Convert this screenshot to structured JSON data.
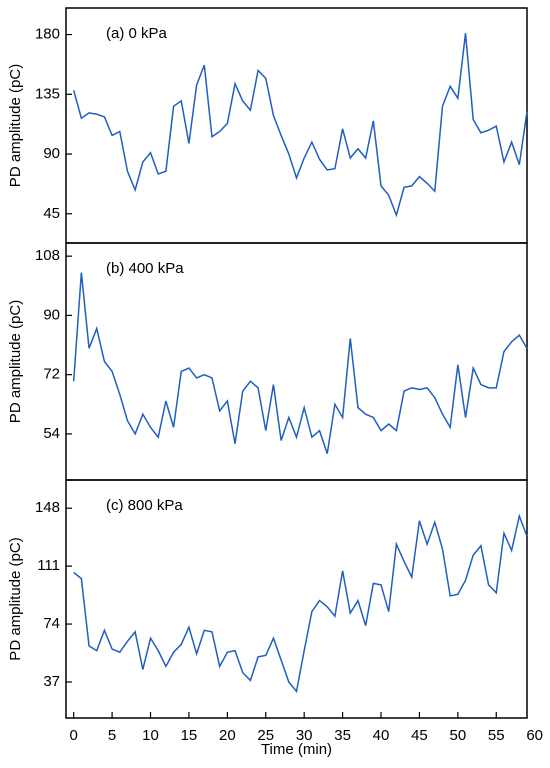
{
  "chart_data": [
    {
      "type": "line",
      "annotation": "(a) 0 kPa",
      "ylabel": "PD amplitude (pC)",
      "x": [
        0,
        1,
        2,
        3,
        4,
        5,
        6,
        7,
        8,
        9,
        10,
        11,
        12,
        13,
        14,
        15,
        16,
        17,
        18,
        19,
        20,
        21,
        22,
        23,
        24,
        25,
        26,
        27,
        28,
        29,
        30,
        31,
        32,
        33,
        34,
        35,
        36,
        37,
        38,
        39,
        40,
        41,
        42,
        43,
        44,
        45,
        46,
        47,
        48,
        49,
        50,
        51,
        52,
        53,
        54,
        55,
        56,
        57,
        58,
        59
      ],
      "series": [
        {
          "color": "#1f5fbf",
          "values": [
            138,
            117,
            121,
            120,
            118,
            104,
            107,
            77,
            63,
            84,
            91,
            75,
            77,
            126,
            130,
            98,
            142,
            157,
            103,
            107,
            113,
            143,
            130,
            123,
            153,
            147,
            119,
            104,
            90,
            72,
            87,
            99,
            86,
            78,
            79,
            109,
            87,
            94,
            87,
            115,
            66,
            59,
            44,
            65,
            66,
            73,
            68,
            62,
            126,
            141,
            132,
            181,
            116,
            106,
            108,
            111,
            84,
            99,
            82,
            122
          ]
        }
      ],
      "xlim": [
        -1,
        59
      ],
      "ylim": [
        23,
        200
      ],
      "yticks": [
        45,
        90,
        135,
        180
      ]
    },
    {
      "type": "line",
      "annotation": "(b) 400 kPa",
      "ylabel": "PD amplitude (pC)",
      "x": [
        0,
        1,
        2,
        3,
        4,
        5,
        6,
        7,
        8,
        9,
        10,
        11,
        12,
        13,
        14,
        15,
        16,
        17,
        18,
        19,
        20,
        21,
        22,
        23,
        24,
        25,
        26,
        27,
        28,
        29,
        30,
        31,
        32,
        33,
        34,
        35,
        36,
        37,
        38,
        39,
        40,
        41,
        42,
        43,
        44,
        45,
        46,
        47,
        48,
        49,
        50,
        51,
        52,
        53,
        54,
        55,
        56,
        57,
        58,
        59
      ],
      "series": [
        {
          "color": "#1f5fbf",
          "values": [
            70,
            103,
            80,
            86,
            76,
            73,
            66,
            58,
            54,
            60,
            56,
            53,
            64,
            56,
            73,
            74,
            71,
            72,
            71,
            61,
            64,
            51,
            67,
            70,
            68,
            55,
            69,
            52,
            59,
            53,
            62,
            53,
            55,
            48,
            63,
            59,
            83,
            62,
            60,
            59,
            55,
            57,
            55,
            67,
            68,
            67.5,
            68,
            65,
            60,
            56,
            75,
            59,
            74,
            69,
            68,
            68,
            79,
            82,
            84,
            80
          ]
        }
      ],
      "xlim": [
        -1,
        59
      ],
      "ylim": [
        40,
        112
      ],
      "yticks": [
        54,
        72,
        90,
        108
      ]
    },
    {
      "type": "line",
      "annotation": "(c) 800 kPa",
      "ylabel": "PD amplitude (pC)",
      "xlabel": "Time (min)",
      "x": [
        0,
        1,
        2,
        3,
        4,
        5,
        6,
        7,
        8,
        9,
        10,
        11,
        12,
        13,
        14,
        15,
        16,
        17,
        18,
        19,
        20,
        21,
        22,
        23,
        24,
        25,
        26,
        27,
        28,
        29,
        30,
        31,
        32,
        33,
        34,
        35,
        36,
        37,
        38,
        39,
        40,
        41,
        42,
        43,
        44,
        45,
        46,
        47,
        48,
        49,
        50,
        51,
        52,
        53,
        54,
        55,
        56,
        57,
        58,
        59
      ],
      "series": [
        {
          "color": "#1f5fbf",
          "values": [
            107,
            103,
            60,
            57,
            70,
            58,
            56,
            63,
            69,
            45,
            65,
            57,
            47,
            56,
            61,
            72,
            55,
            70,
            69,
            47,
            56,
            57,
            43,
            38,
            53,
            54,
            65,
            51,
            37,
            31,
            57,
            82,
            89,
            85,
            79,
            108,
            81,
            89,
            73,
            100,
            99,
            82,
            125,
            114,
            104,
            140,
            125,
            139,
            122,
            92,
            93,
            102,
            118,
            124,
            99,
            94,
            132,
            121,
            143,
            130
          ]
        }
      ],
      "xlim": [
        -1,
        59
      ],
      "xticks": [
        0,
        5,
        10,
        15,
        20,
        25,
        30,
        35,
        40,
        45,
        50,
        55,
        60
      ],
      "ylim": [
        14,
        166
      ],
      "yticks": [
        37,
        74,
        111,
        148
      ]
    }
  ]
}
